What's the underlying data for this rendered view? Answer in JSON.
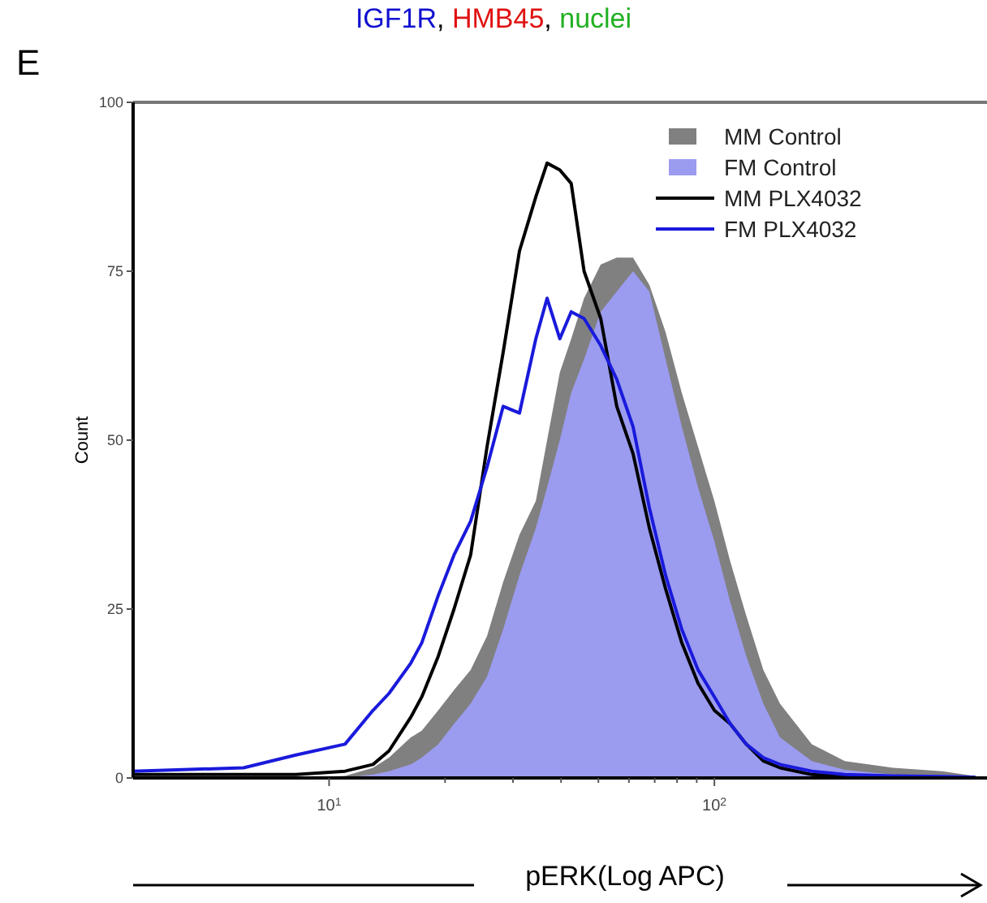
{
  "chart_data": {
    "type": "area",
    "xlabel": "pERK(Log APC)",
    "ylabel": "Count",
    "annotations": [
      "IGF1R, HMB45, nuclei",
      "E"
    ],
    "log": "x",
    "xlim": [
      3.1,
      510
    ],
    "ylim": [
      0,
      100
    ],
    "xticks": [
      {
        "value": 10,
        "label": "10$^{1}$"
      },
      {
        "value": 20,
        "label": null
      },
      {
        "value": 30,
        "label": null
      },
      {
        "value": 40,
        "label": null
      },
      {
        "value": 50,
        "label": null
      },
      {
        "value": 60,
        "label": null
      },
      {
        "value": 70,
        "label": null
      },
      {
        "value": 80,
        "label": null
      },
      {
        "value": 90,
        "label": null
      },
      {
        "value": 100,
        "label": "10$^{2}$"
      }
    ],
    "yticks": [
      0,
      25,
      50,
      75,
      100
    ],
    "grid": false,
    "legend": "top right",
    "x": [
      3.1,
      6.0,
      8.2,
      11.0,
      13.0,
      14.3,
      16.3,
      17.4,
      19.2,
      21.1,
      23.3,
      25.7,
      28.3,
      31.2,
      34.4,
      36.8,
      39.7,
      42.5,
      45.9,
      50.7,
      55.8,
      61.5,
      67.8,
      74.7,
      82.3,
      90.7,
      100,
      110,
      121,
      134,
      148,
      179,
      218,
      291,
      390,
      473
    ],
    "series": [
      {
        "name": "MM Control",
        "color": "#808080",
        "values": [
          0,
          0,
          0,
          0.3,
          1.5,
          3,
          6,
          7,
          10,
          13,
          16,
          21,
          29,
          36,
          41,
          50,
          60,
          65,
          71,
          76,
          77,
          77,
          73,
          66,
          57,
          49,
          41,
          32,
          24,
          16,
          11,
          5,
          2.5,
          1.5,
          1,
          0.3
        ]
      },
      {
        "name": "FM Control",
        "color": "#9b9bf0",
        "values": [
          0,
          0,
          0,
          0,
          0.5,
          1,
          2,
          3,
          5,
          8,
          11,
          15,
          22,
          30,
          37,
          43,
          50,
          57,
          62,
          69,
          72,
          75,
          72,
          62,
          52,
          43,
          35,
          26,
          18,
          11,
          6,
          2.5,
          1.2,
          0.5,
          0.2,
          0
        ]
      },
      {
        "name": "MM PLX4032",
        "type": "line",
        "color": "#000000",
        "values": [
          0.5,
          0.5,
          0.5,
          1,
          2,
          4,
          9,
          12,
          18,
          25,
          33,
          49,
          63,
          78,
          86,
          91,
          90,
          88,
          75,
          68,
          55,
          48,
          37,
          28,
          20,
          14,
          10,
          8,
          5,
          2.5,
          1.5,
          0.5,
          0.3,
          0.2,
          0.1,
          0.1
        ]
      },
      {
        "name": "FM PLX4032",
        "type": "line",
        "color": "#1a1adc",
        "values": [
          1,
          1.5,
          3.4,
          5,
          10,
          12.5,
          17,
          20,
          27,
          33,
          38,
          46,
          55,
          54,
          65,
          71,
          65,
          69,
          68,
          64,
          59,
          52,
          40,
          30,
          22,
          16,
          12,
          8,
          5,
          3,
          2,
          1,
          0.5,
          0.3,
          0.2,
          0.1
        ]
      }
    ]
  }
}
